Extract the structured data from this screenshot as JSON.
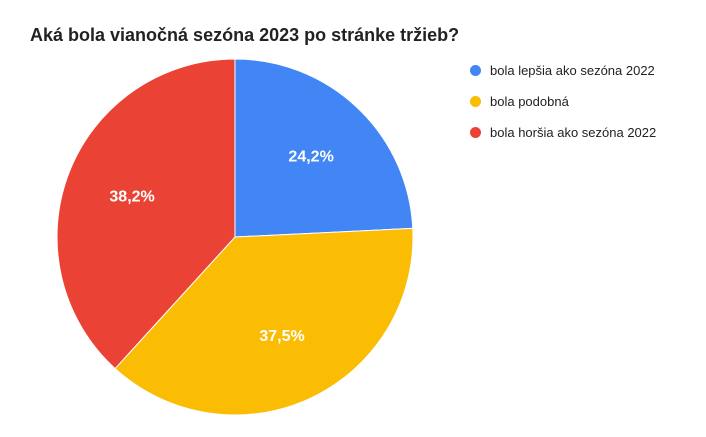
{
  "chart_data": {
    "type": "pie",
    "title": "Aká bola vianočná sezóna 2023 po stránke tržieb?",
    "slices": [
      {
        "label": "bola lepšia ako sezóna 2022",
        "value": 24.2,
        "display": "24,2%",
        "color": "#4285F4"
      },
      {
        "label": "bola podobná",
        "value": 37.5,
        "display": "37,5%",
        "color": "#FBBC04"
      },
      {
        "label": "bola horšia ako sezóna 2022",
        "value": 38.2,
        "display": "38,2%",
        "color": "#EA4335"
      }
    ],
    "legend_position": "right"
  }
}
